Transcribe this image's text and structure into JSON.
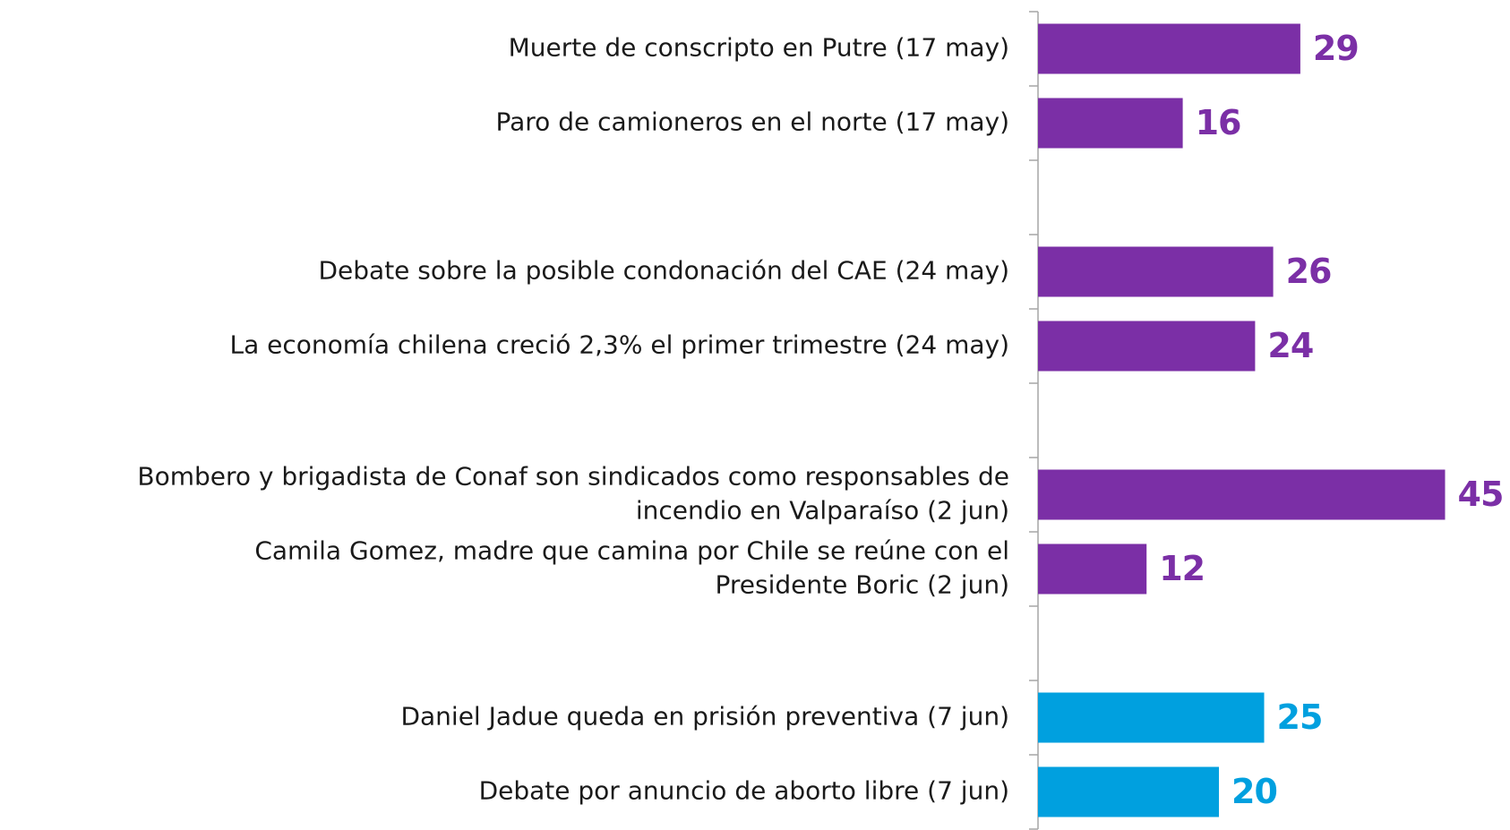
{
  "chart_data": {
    "type": "bar",
    "orientation": "horizontal",
    "categories": [
      "Muerte de conscripto en Putre (17 may)",
      "Paro de camioneros en el norte (17 may)",
      null,
      "Debate sobre la posible condonación del CAE  (24 may)",
      "La economía chilena creció 2,3% el primer trimestre  (24 may)",
      null,
      "Bombero y brigadista de Conaf son sindicados como responsables de\nincendio en Valparaíso (2 jun)",
      "Camila Gomez, madre que camina por Chile se reúne con el\nPresidente Boric (2 jun)",
      null,
      "Daniel Jadue queda en prisión preventiva (7 jun)",
      "Debate por anuncio de aborto libre (7 jun)"
    ],
    "values": [
      29,
      16,
      null,
      26,
      24,
      null,
      45,
      12,
      null,
      25,
      20
    ],
    "colors": [
      "#7b2fa6",
      "#7b2fa6",
      null,
      "#7b2fa6",
      "#7b2fa6",
      null,
      "#7b2fa6",
      "#7b2fa6",
      null,
      "#00a0df",
      "#00a0df"
    ],
    "xlim": [
      0,
      50
    ]
  }
}
